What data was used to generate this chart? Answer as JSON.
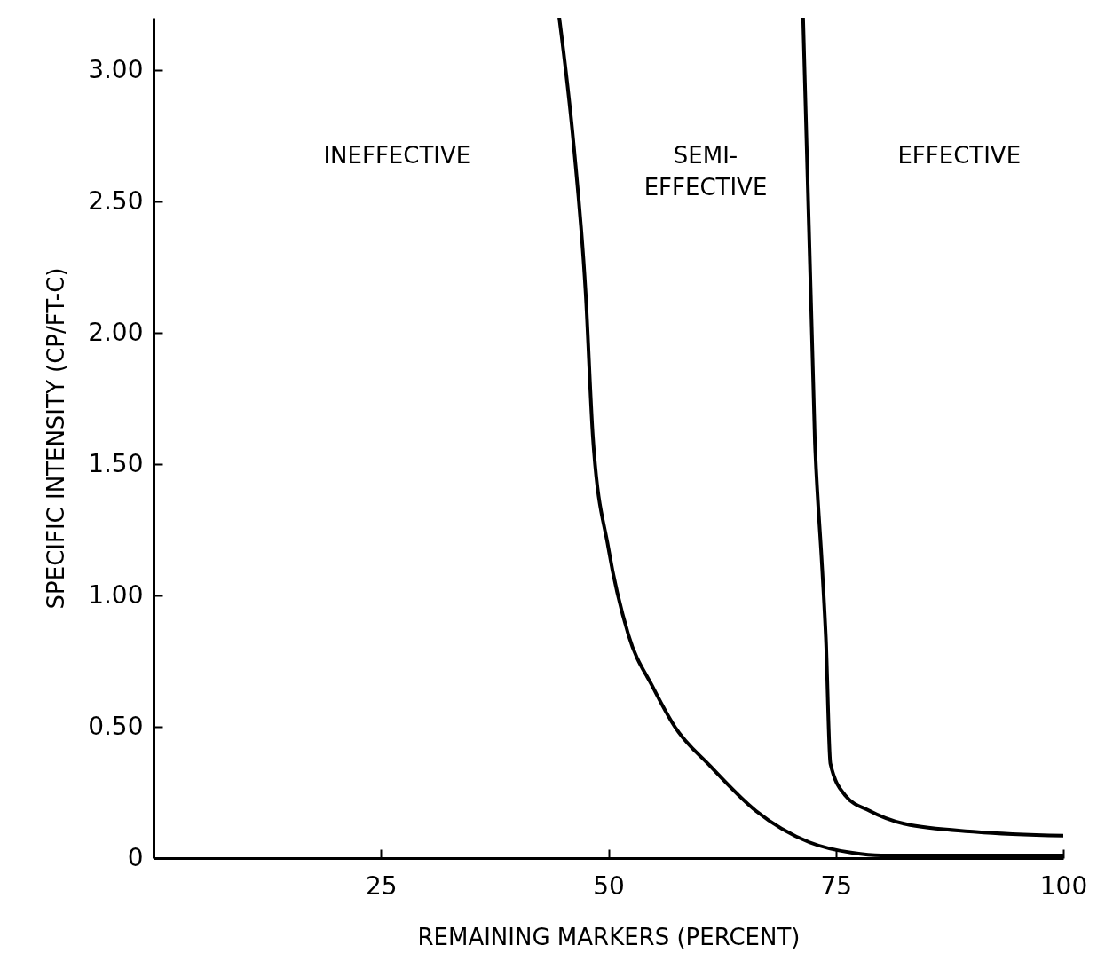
{
  "chart_data": {
    "type": "line",
    "xlabel": "REMAINING MARKERS (PERCENT)",
    "ylabel": "SPECIFIC INTENSITY (CP/FT-C)",
    "xlim": [
      0,
      100
    ],
    "ylim": [
      0,
      3.2
    ],
    "xticks": [
      25,
      50,
      75,
      100
    ],
    "yticks": [
      0,
      {
        "value": 0.5,
        "label": "0.50"
      },
      {
        "value": 1,
        "label": "1.00"
      },
      {
        "value": 1.5,
        "label": "1.50"
      },
      {
        "value": 2,
        "label": "2.00"
      },
      {
        "value": 2.5,
        "label": "2.50"
      },
      {
        "value": 3,
        "label": "3.00"
      }
    ],
    "series": [
      {
        "color": "#000000",
        "x": [
          44.6,
          46.2,
          47.5,
          48.3,
          50.0,
          52.2,
          54.9,
          57.3,
          61.2,
          66.2,
          72.1,
          76.8,
          80,
          100
        ],
        "values": [
          3.2,
          2.71,
          2.15,
          1.6,
          1.18,
          0.85,
          0.65,
          0.5,
          0.35,
          0.18,
          0.06,
          0.02,
          0.01,
          0.01
        ]
      },
      {
        "color": "#000000",
        "x": [
          71.4,
          72.7,
          73.5,
          73.9,
          74.4,
          76.0,
          78.7,
          82.6,
          90.4,
          100
        ],
        "values": [
          3.2,
          1.58,
          1.1,
          0.84,
          0.36,
          0.24,
          0.18,
          0.13,
          0.1,
          0.085
        ]
      }
    ],
    "annotations": [
      "INEFFECTIVE",
      "SEMI-\nEFFECTIVE",
      "EFFECTIVE"
    ],
    "grid": false,
    "marker": "none",
    "line_style": "solid"
  }
}
